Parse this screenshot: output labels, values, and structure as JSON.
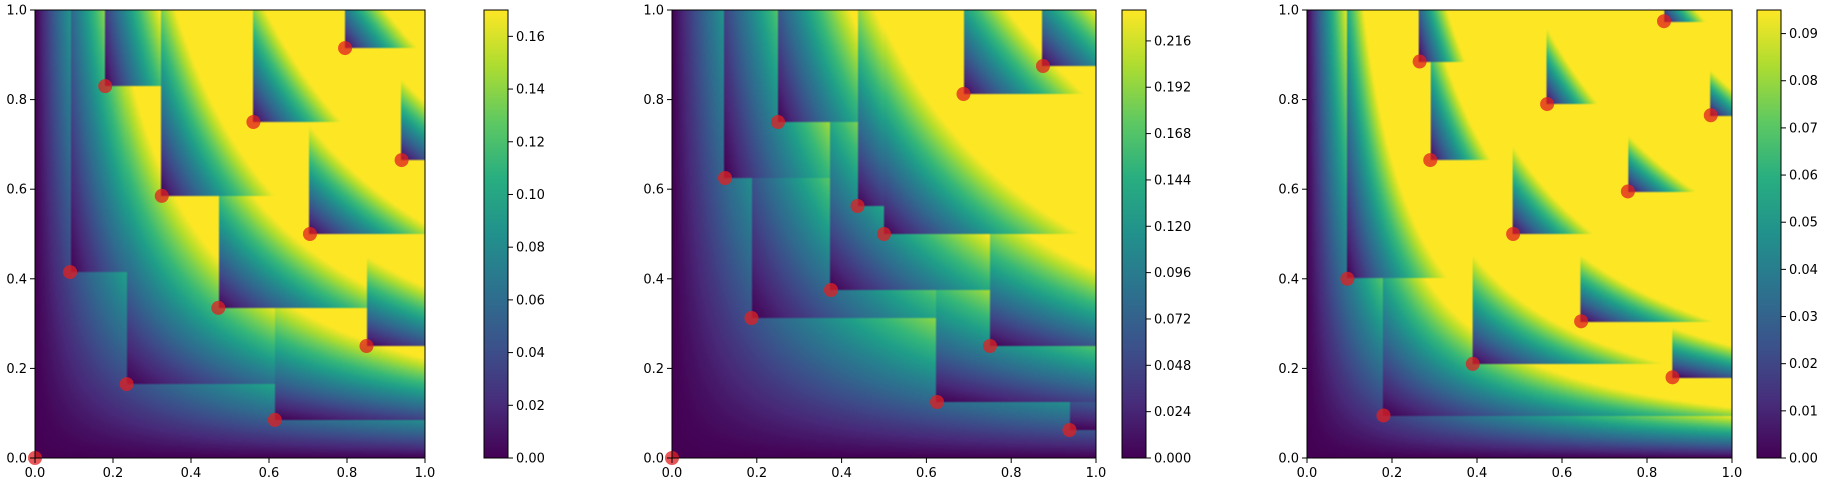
{
  "chart_data": [
    {
      "type": "heatmap",
      "title": "",
      "xlabel": "",
      "ylabel": "",
      "xlim": [
        0,
        1
      ],
      "ylim": [
        0,
        1
      ],
      "grid": false,
      "xticks": [
        "0.0",
        "0.2",
        "0.4",
        "0.6",
        "0.8",
        "1.0"
      ],
      "yticks": [
        "0.0",
        "0.2",
        "0.4",
        "0.6",
        "0.8",
        "1.0"
      ],
      "colorbar": {
        "range": [
          0,
          0.17
        ],
        "ticks": [
          0,
          0.02,
          0.04,
          0.06,
          0.08,
          0.1,
          0.12,
          0.14,
          0.16
        ],
        "tick_labels": [
          "0.00",
          "0.02",
          "0.04",
          "0.06",
          "0.08",
          "0.10",
          "0.12",
          "0.14",
          "0.16"
        ]
      },
      "points": [
        {
          "x": 0.0,
          "y": 0.0
        },
        {
          "x": 0.09,
          "y": 0.415
        },
        {
          "x": 0.18,
          "y": 0.83
        },
        {
          "x": 0.235,
          "y": 0.165
        },
        {
          "x": 0.325,
          "y": 0.585
        },
        {
          "x": 0.47,
          "y": 0.335
        },
        {
          "x": 0.56,
          "y": 0.75
        },
        {
          "x": 0.615,
          "y": 0.085
        },
        {
          "x": 0.705,
          "y": 0.5
        },
        {
          "x": 0.795,
          "y": 0.915
        },
        {
          "x": 0.85,
          "y": 0.25
        },
        {
          "x": 0.94,
          "y": 0.665
        }
      ],
      "marker_color": "#e02020",
      "colormap": "viridis"
    },
    {
      "type": "heatmap",
      "title": "",
      "xlabel": "",
      "ylabel": "",
      "xlim": [
        0,
        1
      ],
      "ylim": [
        0,
        1
      ],
      "grid": false,
      "xticks": [
        "0.0",
        "0.2",
        "0.4",
        "0.6",
        "0.8",
        "1.0"
      ],
      "yticks": [
        "0.0",
        "0.2",
        "0.4",
        "0.6",
        "0.8",
        "1.0"
      ],
      "colorbar": {
        "range": [
          0,
          0.232
        ],
        "ticks": [
          0,
          0.024,
          0.048,
          0.072,
          0.096,
          0.12,
          0.144,
          0.168,
          0.192,
          0.216
        ],
        "tick_labels": [
          "0.000",
          "0.024",
          "0.048",
          "0.072",
          "0.096",
          "0.120",
          "0.144",
          "0.168",
          "0.192",
          "0.216"
        ]
      },
      "points": [
        {
          "x": 0.0,
          "y": 0.0
        },
        {
          "x": 0.125,
          "y": 0.625
        },
        {
          "x": 0.1875,
          "y": 0.3125
        },
        {
          "x": 0.25,
          "y": 0.75
        },
        {
          "x": 0.375,
          "y": 0.375
        },
        {
          "x": 0.4375,
          "y": 0.5625
        },
        {
          "x": 0.5,
          "y": 0.5
        },
        {
          "x": 0.625,
          "y": 0.125
        },
        {
          "x": 0.6875,
          "y": 0.8125
        },
        {
          "x": 0.75,
          "y": 0.25
        },
        {
          "x": 0.875,
          "y": 0.875
        },
        {
          "x": 0.9375,
          "y": 0.0625
        }
      ],
      "marker_color": "#e02020",
      "colormap": "viridis"
    },
    {
      "type": "heatmap",
      "title": "",
      "xlabel": "",
      "ylabel": "",
      "xlim": [
        0,
        1
      ],
      "ylim": [
        0,
        1
      ],
      "grid": false,
      "xticks": [
        "0.0",
        "0.2",
        "0.4",
        "0.6",
        "0.8",
        "1.0"
      ],
      "yticks": [
        "0.0",
        "0.2",
        "0.4",
        "0.6",
        "0.8",
        "1.0"
      ],
      "colorbar": {
        "range": [
          0,
          0.095
        ],
        "ticks": [
          0,
          0.01,
          0.02,
          0.03,
          0.04,
          0.05,
          0.06,
          0.07,
          0.08,
          0.09
        ],
        "tick_labels": [
          "0.00",
          "0.01",
          "0.02",
          "0.03",
          "0.04",
          "0.05",
          "0.06",
          "0.07",
          "0.08",
          "0.09"
        ]
      },
      "points": [
        {
          "x": 0.095,
          "y": 0.4
        },
        {
          "x": 0.18,
          "y": 0.095
        },
        {
          "x": 0.265,
          "y": 0.885
        },
        {
          "x": 0.29,
          "y": 0.665
        },
        {
          "x": 0.39,
          "y": 0.21
        },
        {
          "x": 0.485,
          "y": 0.5
        },
        {
          "x": 0.565,
          "y": 0.79
        },
        {
          "x": 0.645,
          "y": 0.305
        },
        {
          "x": 0.755,
          "y": 0.595
        },
        {
          "x": 0.84,
          "y": 0.975
        },
        {
          "x": 0.86,
          "y": 0.18
        },
        {
          "x": 0.95,
          "y": 0.765
        }
      ],
      "marker_color": "#e02020",
      "colormap": "viridis"
    }
  ]
}
